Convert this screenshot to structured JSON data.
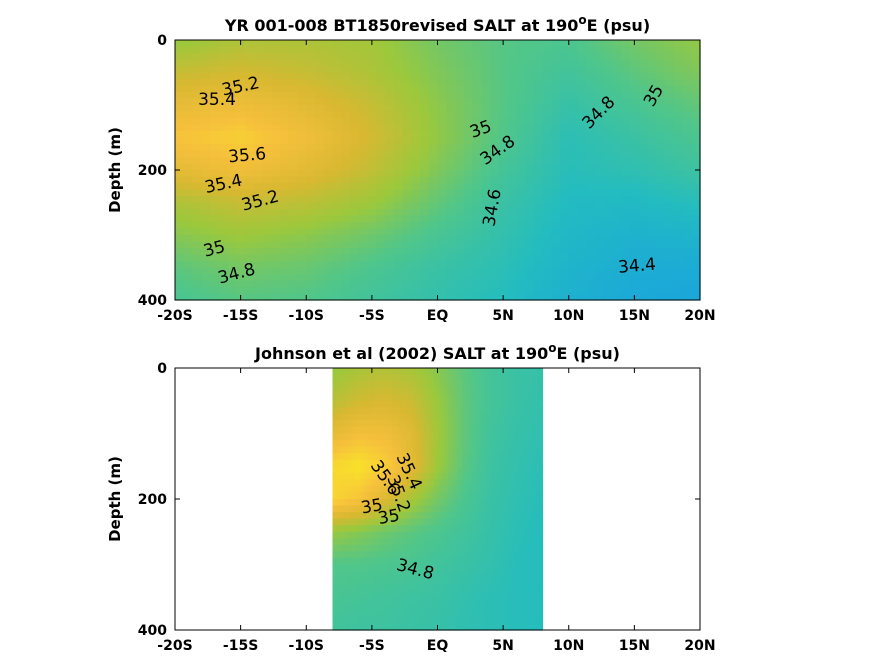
{
  "chart_data": [
    {
      "type": "heatmap",
      "subtype": "filled-contour",
      "title_main": "YR 001-008 BT1850revised SALT at 190",
      "title_sup": "o",
      "title_tail": "E (psu)",
      "ylabel": "Depth (m)",
      "xlabel": "",
      "xticks": [
        "-20S",
        "-15S",
        "-10S",
        "-5S",
        "EQ",
        "5N",
        "10N",
        "15N",
        "20N"
      ],
      "xtick_values": [
        -20,
        -15,
        -10,
        -5,
        0,
        5,
        10,
        15,
        20
      ],
      "yticks": [
        "0",
        "200",
        "400"
      ],
      "ytick_values": [
        0,
        200,
        400
      ],
      "xlim": [
        -20,
        20
      ],
      "ylim": [
        400,
        0
      ],
      "data_xlim": [
        -20,
        20
      ],
      "colorscale": [
        "#1aa5dc",
        "#23bcc0",
        "#50c68a",
        "#9cc83c",
        "#d9b831",
        "#f6c03c",
        "#f9e22a"
      ],
      "value_range": [
        34.3,
        35.8
      ],
      "contour_labels": [
        {
          "text": "35.2",
          "x": -15,
          "y": 72,
          "angle": -12
        },
        {
          "text": "35.4",
          "x": -16.8,
          "y": 92,
          "angle": 0
        },
        {
          "text": "35.6",
          "x": -14.5,
          "y": 178,
          "angle": -5
        },
        {
          "text": "35.4",
          "x": -16.3,
          "y": 222,
          "angle": -12
        },
        {
          "text": "35.2",
          "x": -13.5,
          "y": 248,
          "angle": -15
        },
        {
          "text": "35",
          "x": -17,
          "y": 322,
          "angle": -15
        },
        {
          "text": "34.8",
          "x": -15.3,
          "y": 360,
          "angle": -15
        },
        {
          "text": "35",
          "x": 3.3,
          "y": 138,
          "angle": -20
        },
        {
          "text": "34.8",
          "x": 4.6,
          "y": 170,
          "angle": -35
        },
        {
          "text": "34.6",
          "x": 4.2,
          "y": 258,
          "angle": -80
        },
        {
          "text": "34.8",
          "x": 12.3,
          "y": 112,
          "angle": -45
        },
        {
          "text": "35",
          "x": 16.5,
          "y": 86,
          "angle": -60
        },
        {
          "text": "34.4",
          "x": 15.2,
          "y": 348,
          "angle": -5
        }
      ],
      "field": {
        "x": [
          -20,
          -15,
          -10,
          -5,
          0,
          5,
          10,
          15,
          20
        ],
        "y": [
          0,
          50,
          100,
          150,
          200,
          250,
          300,
          350,
          400
        ],
        "z": [
          [
            35.02,
            35.12,
            35.12,
            35.08,
            34.92,
            34.82,
            34.78,
            34.92,
            35.02
          ],
          [
            35.22,
            35.28,
            35.22,
            35.12,
            34.96,
            34.82,
            34.72,
            34.84,
            34.96
          ],
          [
            35.42,
            35.48,
            35.38,
            35.22,
            35.0,
            34.82,
            34.66,
            34.76,
            34.86
          ],
          [
            35.58,
            35.66,
            35.5,
            35.28,
            35.02,
            34.8,
            34.6,
            34.68,
            34.78
          ],
          [
            35.4,
            35.5,
            35.38,
            35.2,
            34.96,
            34.74,
            34.58,
            34.62,
            34.7
          ],
          [
            35.12,
            35.22,
            35.18,
            35.06,
            34.86,
            34.68,
            34.54,
            34.52,
            34.58
          ],
          [
            34.98,
            35.06,
            35.0,
            34.9,
            34.76,
            34.64,
            34.5,
            34.44,
            34.46
          ],
          [
            34.84,
            34.92,
            34.88,
            34.78,
            34.68,
            34.6,
            34.46,
            34.38,
            34.36
          ],
          [
            34.76,
            34.82,
            34.8,
            34.72,
            34.64,
            34.56,
            34.42,
            34.34,
            34.32
          ]
        ]
      }
    },
    {
      "type": "heatmap",
      "subtype": "filled-contour",
      "title_main": "Johnson et al (2002) SALT at 190",
      "title_sup": "o",
      "title_tail": "E (psu)",
      "ylabel": "Depth (m)",
      "xlabel": "",
      "xticks": [
        "-20S",
        "-15S",
        "-10S",
        "-5S",
        "EQ",
        "5N",
        "10N",
        "15N",
        "20N"
      ],
      "xtick_values": [
        -20,
        -15,
        -10,
        -5,
        0,
        5,
        10,
        15,
        20
      ],
      "yticks": [
        "0",
        "200",
        "400"
      ],
      "ytick_values": [
        0,
        200,
        400
      ],
      "xlim": [
        -20,
        20
      ],
      "ylim": [
        400,
        0
      ],
      "data_xlim": [
        -8,
        8
      ],
      "colorscale": [
        "#1aa5dc",
        "#23bcc0",
        "#50c68a",
        "#9cc83c",
        "#d9b831",
        "#f6c03c",
        "#f9e22a"
      ],
      "value_range": [
        34.3,
        35.8
      ],
      "contour_labels": [
        {
          "text": "35.4",
          "x": -2.2,
          "y": 158,
          "angle": 65
        },
        {
          "text": "35.6",
          "x": -4.0,
          "y": 168,
          "angle": 55
        },
        {
          "text": "35.2",
          "x": -3.0,
          "y": 192,
          "angle": 70
        },
        {
          "text": "35",
          "x": -5.0,
          "y": 212,
          "angle": -10
        },
        {
          "text": "35",
          "x": -3.7,
          "y": 228,
          "angle": -10
        },
        {
          "text": "34.8",
          "x": -1.7,
          "y": 308,
          "angle": 15
        }
      ],
      "field": {
        "x": [
          -8,
          -6,
          -4,
          -2,
          0,
          2,
          4,
          6,
          8
        ],
        "y": [
          0,
          50,
          100,
          150,
          200,
          250,
          300,
          350,
          400
        ],
        "z": [
          [
            35.02,
            35.1,
            35.14,
            35.1,
            34.98,
            34.84,
            34.74,
            34.68,
            34.66
          ],
          [
            35.16,
            35.26,
            35.3,
            35.24,
            35.04,
            34.86,
            34.74,
            34.68,
            34.64
          ],
          [
            35.4,
            35.52,
            35.5,
            35.36,
            35.08,
            34.86,
            34.72,
            34.66,
            34.62
          ],
          [
            35.72,
            35.8,
            35.66,
            35.4,
            35.06,
            34.84,
            34.7,
            34.64,
            34.6
          ],
          [
            35.7,
            35.58,
            35.34,
            35.1,
            34.92,
            34.78,
            34.68,
            34.62,
            34.58
          ],
          [
            35.04,
            34.98,
            34.9,
            34.84,
            34.78,
            34.72,
            34.66,
            34.6,
            34.56
          ],
          [
            34.8,
            34.8,
            34.78,
            34.76,
            34.72,
            34.68,
            34.64,
            34.58,
            34.56
          ],
          [
            34.76,
            34.74,
            34.72,
            34.7,
            34.68,
            34.64,
            34.6,
            34.58,
            34.56
          ],
          [
            34.72,
            34.7,
            34.7,
            34.68,
            34.66,
            34.62,
            34.6,
            34.58,
            34.56
          ]
        ]
      }
    }
  ]
}
